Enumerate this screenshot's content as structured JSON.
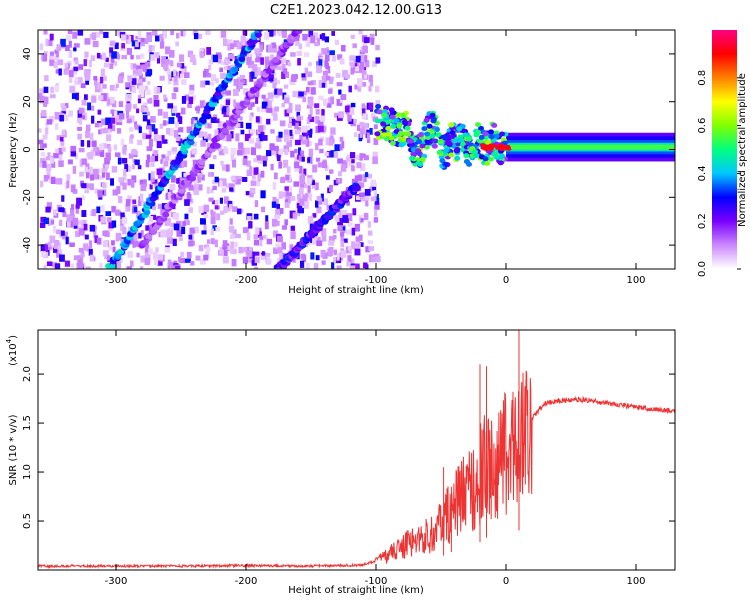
{
  "title": "C2E1.2023.042.12.00.G13",
  "chart_data": [
    {
      "type": "heatmap",
      "xlabel": "Height of straight line (km)",
      "ylabel": "Frequency (Hz)",
      "xlim": [
        -360,
        130
      ],
      "ylim": [
        -50,
        50
      ],
      "xticks": [
        -300,
        -200,
        -100,
        0,
        100
      ],
      "yticks": [
        -40,
        -20,
        0,
        20,
        40
      ],
      "colorbar": {
        "label": "Normalized spectral amplitude",
        "range": [
          0,
          1
        ],
        "ticks": [
          0.0,
          0.2,
          0.4,
          0.6,
          0.8
        ],
        "tick_labels": [
          "0.0",
          "0.2",
          "0.4",
          "0.6",
          "0.8"
        ],
        "colormap": [
          "#ffffff",
          "#cc88ff",
          "#7a00ff",
          "#0000ff",
          "#00c8ff",
          "#00ff80",
          "#80ff00",
          "#ffff00",
          "#ff8000",
          "#ff0000",
          "#ff0080"
        ]
      },
      "features": [
        {
          "name": "diagonal streak A",
          "from": [
            -305,
            -50
          ],
          "to": [
            -190,
            50
          ],
          "amplitude": 0.35
        },
        {
          "name": "diagonal streak B",
          "from": [
            -280,
            -40
          ],
          "to": [
            -160,
            50
          ],
          "amplitude": 0.15
        },
        {
          "name": "diagonal streak C",
          "from": [
            -175,
            -50
          ],
          "to": [
            -115,
            -15
          ],
          "amplitude": 0.25
        },
        {
          "name": "noise floor region",
          "x_range": [
            -360,
            -100
          ],
          "amplitude": 0.1
        },
        {
          "name": "signal band",
          "x_range": [
            -100,
            130
          ],
          "freq_center": 1,
          "amplitude": 0.5
        }
      ]
    },
    {
      "type": "line",
      "xlabel": "Height of straight line (km)",
      "ylabel": "SNR (10 * v/v)",
      "y_multiplier_label": "(x10",
      "y_multiplier_exp": "4",
      "y_multiplier_close": ")",
      "xlim": [
        -360,
        130
      ],
      "ylim": [
        0,
        24500
      ],
      "xticks": [
        -300,
        -200,
        -100,
        0,
        100
      ],
      "yticks": [
        5000,
        10000,
        15000,
        20000
      ],
      "ytick_labels": [
        "0.5",
        "1.0",
        "1.5",
        "2.0"
      ],
      "color": "#ee3333",
      "series": [
        {
          "x": [
            -360,
            -300,
            -250,
            -200,
            -150,
            -110,
            -95,
            -85,
            -70,
            -60,
            -50,
            -40,
            -30,
            -20,
            -15,
            -10,
            -5,
            0,
            5,
            10,
            15,
            20,
            30,
            40,
            60,
            80,
            100,
            130
          ],
          "y": [
            400,
            400,
            400,
            450,
            400,
            500,
            1200,
            2000,
            3000,
            3500,
            4500,
            6500,
            8000,
            9500,
            11000,
            10000,
            10500,
            12000,
            12500,
            13500,
            14500,
            15500,
            17000,
            17300,
            17400,
            17000,
            16600,
            16200
          ]
        }
      ],
      "spikes": [
        {
          "x": -48,
          "y": 10500
        },
        {
          "x": -42,
          "y": 8500
        },
        {
          "x": -20,
          "y": 21000
        },
        {
          "x": -15,
          "y": 20800
        },
        {
          "x": 10,
          "y": 24500
        }
      ]
    }
  ]
}
